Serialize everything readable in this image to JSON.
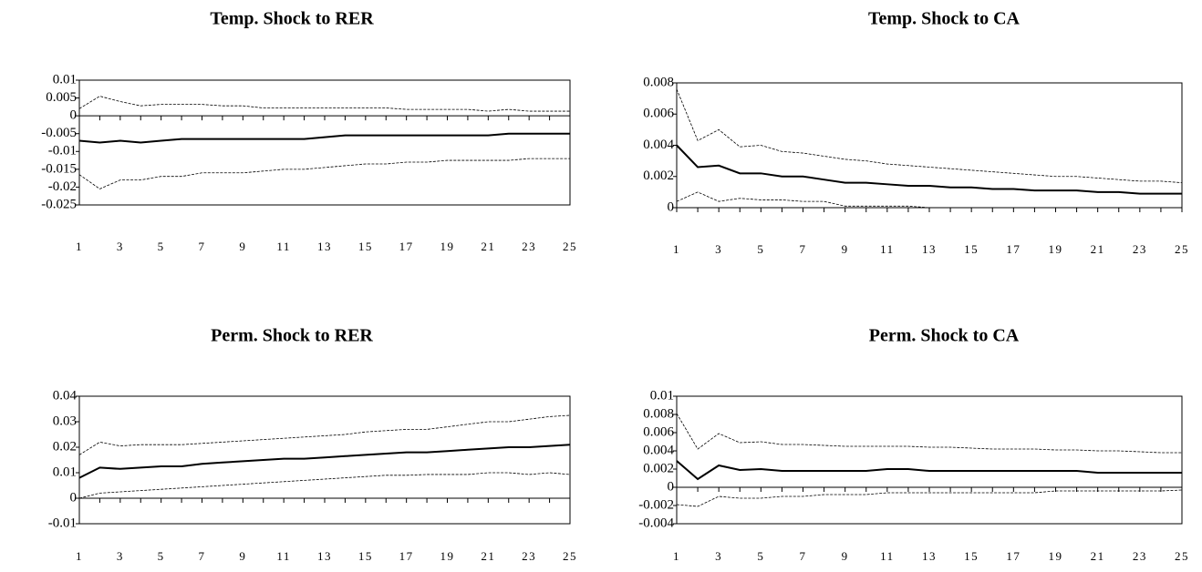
{
  "chart_data": [
    {
      "type": "line",
      "title": "Temp. Shock to RER",
      "categories": [
        1,
        null,
        3,
        null,
        5,
        null,
        7,
        null,
        9,
        null,
        11,
        null,
        13,
        null,
        15,
        null,
        17,
        null,
        19,
        null,
        21,
        null,
        23,
        null,
        25
      ],
      "series": [
        {
          "color": "#000000",
          "style": "dashed",
          "values": [
            0.002,
            0.0055,
            0.004,
            0.0028,
            0.0032,
            0.0032,
            0.0032,
            0.0028,
            0.0028,
            0.0022,
            0.0022,
            0.0022,
            0.0022,
            0.0022,
            0.0022,
            0.0022,
            0.0018,
            0.0018,
            0.0018,
            0.0018,
            0.0013,
            0.0018,
            0.0013,
            0.0013,
            0.0013
          ]
        },
        {
          "color": "#000000",
          "style": "solid",
          "values": [
            -0.007,
            -0.0075,
            -0.007,
            -0.0075,
            -0.007,
            -0.0065,
            -0.0065,
            -0.0065,
            -0.0065,
            -0.0065,
            -0.0065,
            -0.0065,
            -0.006,
            -0.0055,
            -0.0055,
            -0.0055,
            -0.0055,
            -0.0055,
            -0.0055,
            -0.0055,
            -0.0055,
            -0.005,
            -0.005,
            -0.005,
            -0.005
          ]
        },
        {
          "color": "#000000",
          "style": "dashed",
          "values": [
            -0.0165,
            -0.0205,
            -0.018,
            -0.018,
            -0.017,
            -0.017,
            -0.016,
            -0.016,
            -0.016,
            -0.0155,
            -0.015,
            -0.015,
            -0.0145,
            -0.014,
            -0.0135,
            -0.0135,
            -0.013,
            -0.013,
            -0.0125,
            -0.0125,
            -0.0125,
            -0.0125,
            -0.012,
            -0.012,
            -0.012
          ]
        }
      ],
      "ylim": [
        -0.025,
        0.01
      ],
      "yticks": [
        0.01,
        0.005,
        0,
        -0.005,
        -0.01,
        -0.015,
        -0.02,
        -0.025
      ]
    },
    {
      "type": "line",
      "title": "Temp. Shock to CA",
      "categories": [
        1,
        null,
        3,
        null,
        5,
        null,
        7,
        null,
        9,
        null,
        11,
        null,
        13,
        null,
        15,
        null,
        17,
        null,
        19,
        null,
        21,
        null,
        23,
        null,
        25
      ],
      "series": [
        {
          "color": "#000000",
          "style": "dashed",
          "values": [
            0.0076,
            0.0043,
            0.005,
            0.0039,
            0.004,
            0.0036,
            0.0035,
            0.0033,
            0.0031,
            0.003,
            0.0028,
            0.0027,
            0.0026,
            0.0025,
            0.0024,
            0.0023,
            0.0022,
            0.0021,
            0.002,
            0.002,
            0.0019,
            0.0018,
            0.0017,
            0.0017,
            0.0016
          ]
        },
        {
          "color": "#000000",
          "style": "solid",
          "values": [
            0.004,
            0.0026,
            0.0027,
            0.0022,
            0.0022,
            0.002,
            0.002,
            0.0018,
            0.0016,
            0.0016,
            0.0015,
            0.0014,
            0.0014,
            0.0013,
            0.0013,
            0.0012,
            0.0012,
            0.0011,
            0.0011,
            0.0011,
            0.001,
            0.001,
            0.0009,
            0.0009,
            0.0009
          ]
        },
        {
          "color": "#000000",
          "style": "dashed",
          "values": [
            0.0004,
            0.001,
            0.0004,
            0.0006,
            0.0005,
            0.0005,
            0.0004,
            0.0004,
            0.0001,
            0.0001,
            0.0001,
            0.0001,
            0,
            null,
            null,
            null,
            null,
            null,
            null,
            null,
            null,
            null,
            null,
            null,
            null
          ]
        }
      ],
      "ylim": [
        0,
        0.008
      ],
      "yticks": [
        0.008,
        0.006,
        0.004,
        0.002,
        0
      ]
    },
    {
      "type": "line",
      "title": "Perm. Shock to RER",
      "categories": [
        1,
        null,
        3,
        null,
        5,
        null,
        7,
        null,
        9,
        null,
        11,
        null,
        13,
        null,
        15,
        null,
        17,
        null,
        19,
        null,
        21,
        null,
        23,
        null,
        25
      ],
      "series": [
        {
          "color": "#000000",
          "style": "dashed",
          "values": [
            0.017,
            0.022,
            0.0205,
            0.021,
            0.021,
            0.021,
            0.0215,
            0.022,
            0.0225,
            0.023,
            0.0235,
            0.024,
            0.0245,
            0.025,
            0.026,
            0.0265,
            0.027,
            0.027,
            0.028,
            0.029,
            0.03,
            0.03,
            0.031,
            0.032,
            0.0325
          ]
        },
        {
          "color": "#000000",
          "style": "solid",
          "values": [
            0.008,
            0.012,
            0.0115,
            0.012,
            0.0125,
            0.0125,
            0.0135,
            0.014,
            0.0145,
            0.015,
            0.0155,
            0.0155,
            0.016,
            0.0165,
            0.017,
            0.0175,
            0.018,
            0.018,
            0.0185,
            0.019,
            0.0195,
            0.02,
            0.02,
            0.0205,
            0.021
          ]
        },
        {
          "color": "#000000",
          "style": "dashed",
          "values": [
            0,
            0.002,
            0.0025,
            0.003,
            0.0035,
            0.004,
            0.0045,
            0.005,
            0.0055,
            0.006,
            0.0065,
            0.007,
            0.0075,
            0.008,
            0.0085,
            0.009,
            0.009,
            0.0093,
            0.0093,
            0.0093,
            0.01,
            0.01,
            0.0093,
            0.01,
            0.0093
          ]
        }
      ],
      "ylim": [
        -0.01,
        0.04
      ],
      "yticks": [
        0.04,
        0.03,
        0.02,
        0.01,
        0,
        -0.01
      ]
    },
    {
      "type": "line",
      "title": "Perm. Shock to CA",
      "categories": [
        1,
        null,
        3,
        null,
        5,
        null,
        7,
        null,
        9,
        null,
        11,
        null,
        13,
        null,
        15,
        null,
        17,
        null,
        19,
        null,
        21,
        null,
        23,
        null,
        25
      ],
      "series": [
        {
          "color": "#000000",
          "style": "dashed",
          "values": [
            0.0081,
            0.0042,
            0.0059,
            0.0049,
            0.005,
            0.0047,
            0.0047,
            0.0046,
            0.0045,
            0.0045,
            0.0045,
            0.0045,
            0.0044,
            0.0044,
            0.0043,
            0.0042,
            0.0042,
            0.0042,
            0.0041,
            0.0041,
            0.004,
            0.004,
            0.0039,
            0.0038,
            0.0038
          ]
        },
        {
          "color": "#000000",
          "style": "solid",
          "values": [
            0.0029,
            0.0009,
            0.0024,
            0.0019,
            0.002,
            0.0018,
            0.0018,
            0.0018,
            0.0018,
            0.0018,
            0.002,
            0.002,
            0.0018,
            0.0018,
            0.0018,
            0.0018,
            0.0018,
            0.0018,
            0.0018,
            0.0018,
            0.0016,
            0.0016,
            0.0016,
            0.0016,
            0.0016
          ]
        },
        {
          "color": "#000000",
          "style": "dashed",
          "values": [
            -0.0019,
            -0.0021,
            -0.001,
            -0.0012,
            -0.0012,
            -0.001,
            -0.001,
            -0.0008,
            -0.0008,
            -0.0008,
            -0.0006,
            -0.0006,
            -0.0006,
            -0.0006,
            -0.0006,
            -0.0006,
            -0.0006,
            -0.0006,
            -0.0004,
            -0.0004,
            -0.0004,
            -0.0004,
            -0.0004,
            -0.0004,
            -0.0003
          ]
        }
      ],
      "ylim": [
        -0.004,
        0.01
      ],
      "yticks": [
        0.01,
        0.008,
        0.006,
        0.004,
        0.002,
        0,
        -0.002,
        -0.004
      ]
    }
  ]
}
